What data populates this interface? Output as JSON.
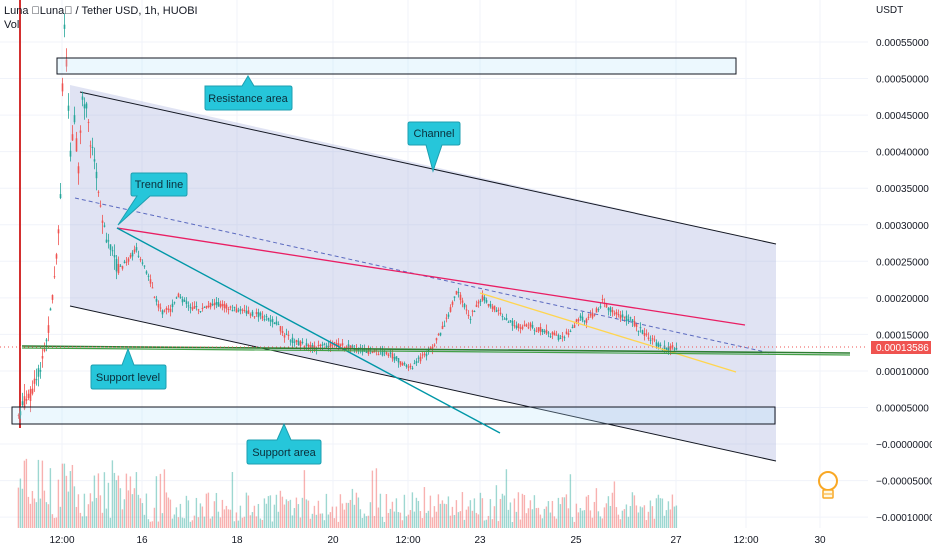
{
  "header": {
    "title": "Luna \u0000Luna\u0000 / Tether USD, 1h, HUOBI",
    "vol_label": "Vol"
  },
  "yaxis": {
    "unit": "USDT",
    "ticks": [
      "0.00055000",
      "0.00050000",
      "0.00045000",
      "0.00040000",
      "0.00035000",
      "0.00030000",
      "0.00025000",
      "0.00020000",
      "0.00015000",
      "0.00010000",
      "0.00005000",
      "−0.00000000",
      "−0.00005000",
      "−0.00010000"
    ],
    "current_price": "0.00013586"
  },
  "xaxis": {
    "ticks": [
      "12:00",
      "16",
      "18",
      "20",
      "12:00",
      "23",
      "25",
      "27",
      "12:00",
      "30"
    ]
  },
  "annotations": {
    "resistance": "Resistance area",
    "channel": "Channel",
    "trend_line": "Trend line",
    "support_level": "Support level",
    "support_area": "Support area"
  },
  "colors": {
    "up": "#26a69a",
    "down": "#ef5350",
    "channel_fill": "#9fa8da",
    "trend_pink": "#e91e63",
    "trend_teal": "#0097a7",
    "support_green": "#43a047",
    "callout": "#26c6da",
    "yellow": "#ffd54f",
    "price_tag": "#ef5350"
  },
  "chart_data": {
    "type": "candlestick",
    "symbol": "Luna / Tether USD",
    "interval": "1h",
    "exchange": "HUOBI",
    "current_price": 0.00013586,
    "ylim": [
      -0.0001,
      0.0006
    ],
    "price_path": [
      {
        "x": "start",
        "y": 2e-05
      },
      {
        "x": "12:00",
        "y": 0.00058
      },
      {
        "x": "16",
        "y": 0.00022
      },
      {
        "x": "18",
        "y": 0.00018
      },
      {
        "x": "20",
        "y": 0.00013
      },
      {
        "x": "12:00",
        "y": 0.00011
      },
      {
        "x": "23",
        "y": 0.00023
      },
      {
        "x": "25",
        "y": 0.00015
      },
      {
        "x": "27",
        "y": 0.00013586
      }
    ],
    "levels": {
      "resistance_area": [
        0.000503,
        0.000523
      ],
      "support_level": 0.000135,
      "support_area": [
        3.3e-05,
        5.5e-05
      ]
    }
  }
}
